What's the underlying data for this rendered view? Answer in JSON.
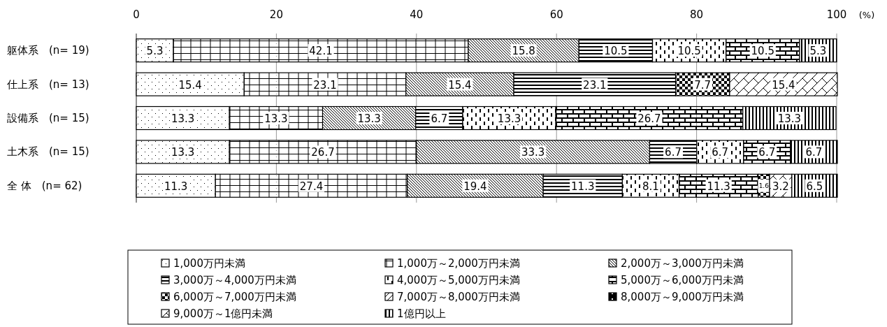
{
  "chart_data": {
    "type": "bar",
    "orientation": "horizontal",
    "stacked": true,
    "categories": [
      "躯体系　(n= 19)",
      "仕上系　(n= 13)",
      "設備系　(n= 15)",
      "土木系　(n= 15)",
      "全 体　(n= 62)"
    ],
    "xlim": [
      0,
      100
    ],
    "xticks": [
      0,
      20,
      40,
      60,
      80,
      100
    ],
    "xlabel": "(%)",
    "grid": "x",
    "legend": "bottom",
    "data_labels": true,
    "series": [
      {
        "name": "1,000万円未満",
        "color": "#000000",
        "values": [
          5.3,
          15.4,
          13.3,
          13.3,
          11.3
        ]
      },
      {
        "name": "1,000万～2,000万円未満",
        "color": "#000000",
        "values": [
          42.1,
          23.1,
          13.3,
          26.7,
          27.4
        ]
      },
      {
        "name": "2,000万～3,000万円未満",
        "color": "#000000",
        "values": [
          15.8,
          15.4,
          13.3,
          33.3,
          19.4
        ]
      },
      {
        "name": "3,000万～4,000万円未満",
        "color": "#000000",
        "values": [
          10.5,
          23.1,
          6.7,
          6.7,
          11.3
        ]
      },
      {
        "name": "4,000万～5,000万円未満",
        "color": "#000000",
        "values": [
          10.5,
          null,
          13.3,
          6.7,
          8.1
        ]
      },
      {
        "name": "5,000万～6,000万円未満",
        "color": "#000000",
        "values": [
          10.5,
          null,
          26.7,
          6.7,
          11.3
        ]
      },
      {
        "name": "6,000万～7,000万円未満",
        "color": "#000000",
        "values": [
          null,
          7.7,
          null,
          null,
          1.6
        ]
      },
      {
        "name": "7,000万～8,000万円未満",
        "color": "#000000",
        "values": [
          null,
          null,
          null,
          null,
          null
        ]
      },
      {
        "name": "8,000万～9,000万円未満",
        "color": "#000000",
        "values": [
          null,
          null,
          null,
          null,
          null
        ]
      },
      {
        "name": "9,000万～1億円未満",
        "color": "#000000",
        "values": [
          null,
          15.4,
          null,
          null,
          3.2
        ]
      },
      {
        "name": "1億円以上",
        "color": "#000000",
        "values": [
          5.3,
          null,
          13.3,
          6.7,
          6.5
        ]
      }
    ]
  }
}
